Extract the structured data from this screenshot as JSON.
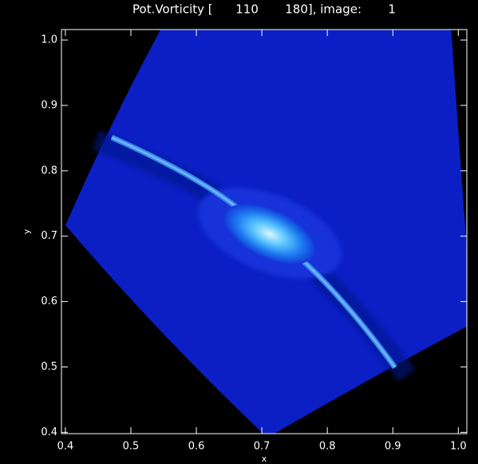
{
  "chart_data": {
    "type": "image",
    "title": "Pot.Vorticity [      110       180], image:       1",
    "x_label": "x",
    "y_label": "y",
    "xlim": [
      0.394,
      1.013
    ],
    "ylim": [
      0.398,
      1.016
    ],
    "xticks": [
      0.4,
      0.5,
      0.6,
      0.7,
      0.8,
      0.9,
      {
        "value": 1,
        "label": "1.0"
      }
    ],
    "yticks": [
      {
        "value": 0.4,
        "label": "0.4"
      },
      0.5,
      0.6,
      0.7,
      0.8,
      0.9,
      {
        "value": 1,
        "label": "1.0"
      }
    ]
  }
}
